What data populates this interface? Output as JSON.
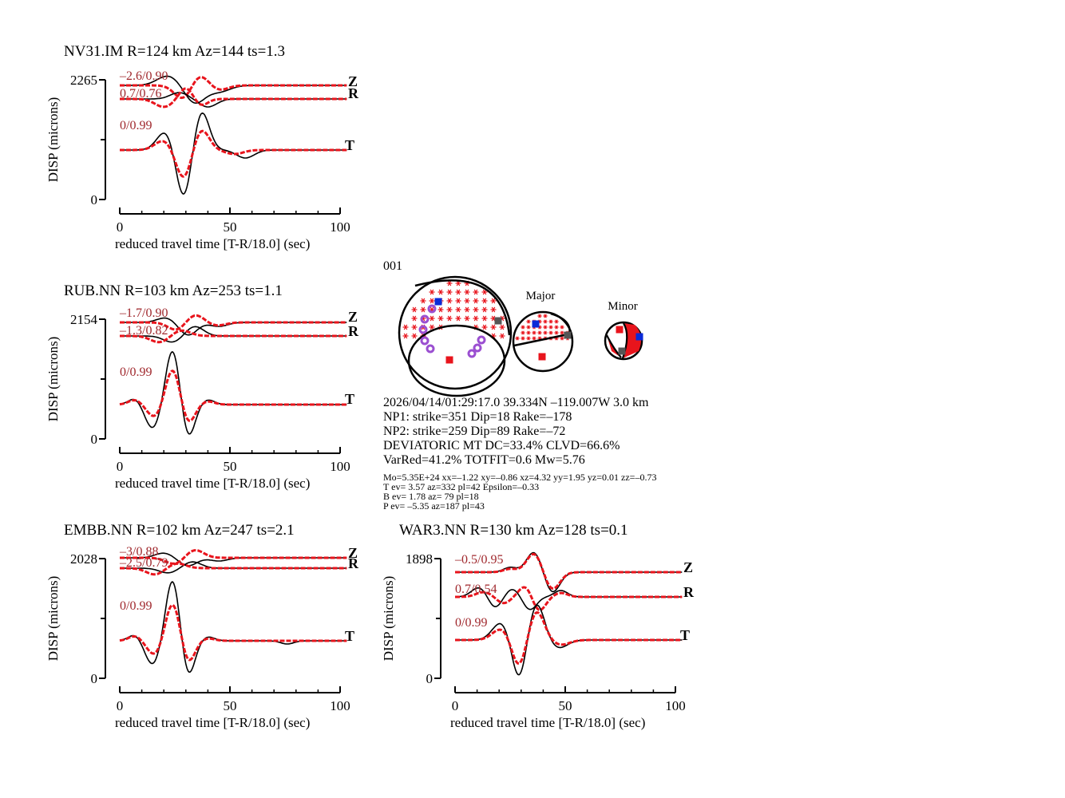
{
  "figure": {
    "event_id": "001",
    "colors": {
      "observed": "#000000",
      "synthetic": "#e8141c",
      "fit_text": "#a0282d",
      "compression": "#e8141c",
      "t_axis": "#0a2ad8",
      "p_axis": "#e8141c",
      "b_axis": "#555555",
      "station_marker": "#9b4fd1"
    },
    "mechanism": {
      "major_label": "Major",
      "minor_label": "Minor"
    },
    "info": {
      "line1": "2026/04/14/01:29:17.0 39.334N –119.007W 3.0 km",
      "line2": "NP1: strike=351 Dip=18 Rake=–178",
      "line3": "NP2: strike=259 Dip=89 Rake=–72",
      "line4": "DEVIATORIC MT DC=33.4% CLVD=66.6%",
      "line5": "VarRed=41.2% TOTFIT=0.6 Mw=5.76",
      "small1": "Mo=5.35E+24 xx=–1.22 xy=–0.86 xz=4.32 yy=1.95 yz=0.01 zz=–0.73",
      "small2": "T ev=  3.57 az=332 pl=42 Epsilon=–0.33",
      "small3": "B ev=  1.78 az= 79 pl=18",
      "small4": "P ev= –5.35 az=187 pl=43"
    }
  },
  "chart_data": [
    {
      "type": "line",
      "title": "NV31.IM R=124 km Az=144 ts=1.3",
      "xlabel": "reduced travel time [T-R/18.0] (sec)",
      "ylabel": "DISP (microns)",
      "xlim": [
        0,
        100
      ],
      "xticks": [
        "0",
        "50",
        "100"
      ],
      "ymax_label": "2265",
      "ymin_label": "0",
      "series": [
        {
          "name": "Z",
          "fit": "–2.6/0.90"
        },
        {
          "name": "R",
          "fit": "0.7/0.76"
        },
        {
          "name": "T",
          "fit": "0/0.99"
        }
      ]
    },
    {
      "type": "line",
      "title": "RUB.NN R=103 km Az=253 ts=1.1",
      "xlabel": "reduced travel time [T-R/18.0] (sec)",
      "ylabel": "DISP (microns)",
      "xlim": [
        0,
        100
      ],
      "xticks": [
        "0",
        "50",
        "100"
      ],
      "ymax_label": "2154",
      "ymin_label": "0",
      "series": [
        {
          "name": "Z",
          "fit": "–1.7/0.90"
        },
        {
          "name": "R",
          "fit": "–1.3/0.82"
        },
        {
          "name": "T",
          "fit": "0/0.99"
        }
      ]
    },
    {
      "type": "line",
      "title": "EMBB.NN R=102 km Az=247 ts=2.1",
      "xlabel": "reduced travel time [T-R/18.0] (sec)",
      "ylabel": "DISP (microns)",
      "xlim": [
        0,
        100
      ],
      "xticks": [
        "0",
        "50",
        "100"
      ],
      "ymax_label": "2028",
      "ymin_label": "0",
      "series": [
        {
          "name": "Z",
          "fit": "–3/0.88"
        },
        {
          "name": "R",
          "fit": "–2.5/0.79"
        },
        {
          "name": "T",
          "fit": "0/0.99"
        }
      ]
    },
    {
      "type": "line",
      "title": "WAR3.NN R=130 km Az=128 ts=0.1",
      "xlabel": "reduced travel time [T-R/18.0] (sec)",
      "ylabel": "DISP (microns)",
      "xlim": [
        0,
        100
      ],
      "xticks": [
        "0",
        "50",
        "100"
      ],
      "ymax_label": "1898",
      "ymin_label": "0",
      "series": [
        {
          "name": "Z",
          "fit": "–0.5/0.95"
        },
        {
          "name": "R",
          "fit": "0.7/0.54"
        },
        {
          "name": "T",
          "fit": "0/0.99"
        }
      ]
    }
  ]
}
